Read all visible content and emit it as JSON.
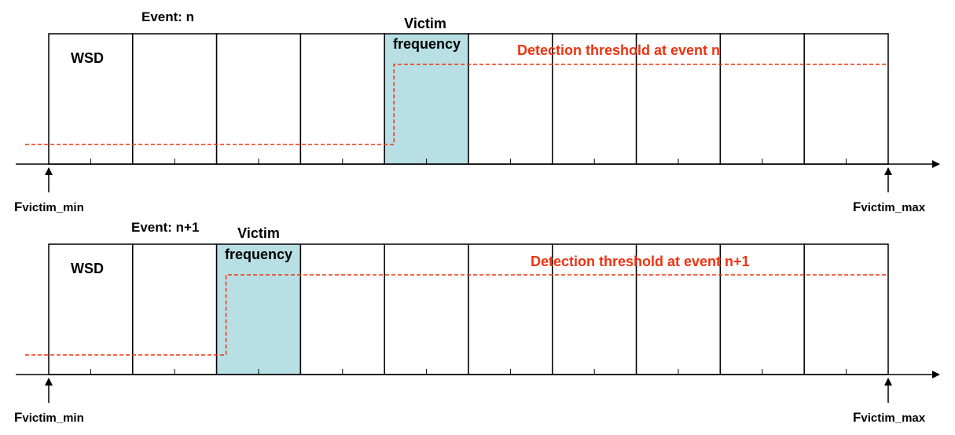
{
  "colors": {
    "threshold": "#ee3311",
    "victim_fill": "#b8dfe3",
    "grid": "#000000"
  },
  "panels": [
    {
      "event_label": "Event: n",
      "wsd_label": "WSD",
      "victim_label_line1": "Victim",
      "victim_label_line2": "frequency",
      "victim_channel_index": 4,
      "channel_count": 10,
      "threshold_label": "Detection threshold at event n",
      "fmin_main": "F",
      "fmin_sub": "victim_min",
      "fmax_main": "F",
      "fmax_sub": "victim_max"
    },
    {
      "event_label": "Event: n+1",
      "wsd_label": "WSD",
      "victim_label_line1": "Victim",
      "victim_label_line2": "frequency",
      "victim_channel_index": 2,
      "channel_count": 10,
      "threshold_label": "Detection threshold at event n+1",
      "fmin_main": "F",
      "fmin_sub": "victim_min",
      "fmax_main": "F",
      "fmax_sub": "victim_max"
    }
  ]
}
